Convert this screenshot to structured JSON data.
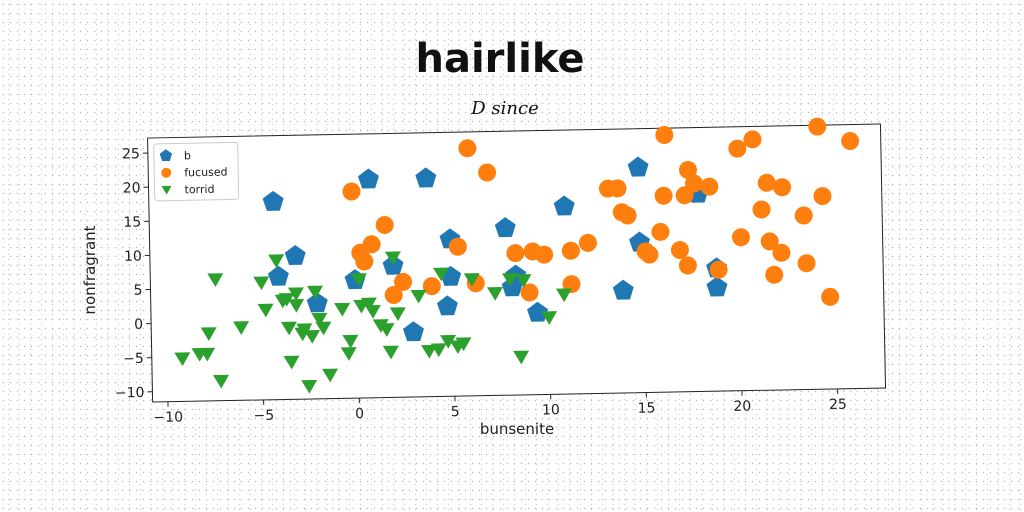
{
  "chart_data": {
    "type": "scatter",
    "title": "hairlike",
    "subtitle": "D since",
    "xlabel": "bunsenite",
    "ylabel": "nonfragrant",
    "xlim": [
      -10.8,
      27.5
    ],
    "ylim": [
      -11.5,
      27.2
    ],
    "x_ticks": [
      -10,
      -5,
      0,
      5,
      10,
      15,
      20,
      25
    ],
    "y_ticks": [
      -10,
      -5,
      0,
      5,
      10,
      15,
      20,
      25
    ],
    "x_tick_labels": [
      "−10",
      "−5",
      "0",
      "5",
      "10",
      "15",
      "20",
      "25"
    ],
    "y_tick_labels": [
      "−10",
      "−5",
      "0",
      "5",
      "10",
      "15",
      "20",
      "25"
    ],
    "grid": false,
    "legend_position": "top-left",
    "series": [
      {
        "name": "b",
        "marker": "pentagon",
        "color": "#1f77b4",
        "points": [
          [
            -4.3,
            17.5
          ],
          [
            0.7,
            20.5
          ],
          [
            3.7,
            20.5
          ],
          [
            -3.2,
            9.5
          ],
          [
            -4.1,
            6.5
          ],
          [
            -2.1,
            2.5
          ],
          [
            -0.1,
            5.8
          ],
          [
            1.9,
            7.8
          ],
          [
            2.9,
            -2.0
          ],
          [
            4.9,
            11.5
          ],
          [
            4.9,
            6.0
          ],
          [
            4.7,
            1.7
          ],
          [
            7.8,
            13.0
          ],
          [
            8.3,
            6.0
          ],
          [
            8.1,
            4.3
          ],
          [
            9.4,
            0.5
          ],
          [
            10.9,
            16.0
          ],
          [
            13.9,
            3.5
          ],
          [
            14.8,
            21.5
          ],
          [
            14.8,
            10.5
          ],
          [
            17.9,
            17.5
          ],
          [
            18.8,
            6.5
          ],
          [
            18.8,
            3.7
          ]
        ]
      },
      {
        "name": "fucused",
        "marker": "circle",
        "color": "#ff7f0e",
        "points": [
          [
            -0.2,
            18.8
          ],
          [
            0.2,
            9.8
          ],
          [
            0.4,
            8.5
          ],
          [
            0.8,
            11.0
          ],
          [
            1.5,
            13.8
          ],
          [
            1.9,
            3.5
          ],
          [
            2.4,
            5.4
          ],
          [
            3.9,
            4.7
          ],
          [
            5.3,
            10.4
          ],
          [
            5.9,
            24.8
          ],
          [
            6.2,
            5.0
          ],
          [
            6.9,
            21.2
          ],
          [
            8.3,
            9.3
          ],
          [
            9.0,
            3.5
          ],
          [
            9.2,
            9.5
          ],
          [
            9.8,
            9.0
          ],
          [
            11.2,
            9.5
          ],
          [
            11.2,
            4.6
          ],
          [
            12.1,
            10.6
          ],
          [
            13.2,
            18.5
          ],
          [
            13.7,
            18.5
          ],
          [
            13.9,
            15.0
          ],
          [
            14.2,
            14.5
          ],
          [
            15.1,
            9.2
          ],
          [
            15.3,
            8.7
          ],
          [
            15.9,
            12.0
          ],
          [
            16.1,
            17.3
          ],
          [
            16.2,
            26.2
          ],
          [
            16.9,
            9.3
          ],
          [
            17.2,
            17.3
          ],
          [
            17.3,
            7.0
          ],
          [
            17.4,
            21.0
          ],
          [
            17.7,
            19.0
          ],
          [
            18.5,
            18.5
          ],
          [
            18.9,
            6.3
          ],
          [
            20.0,
            24.0
          ],
          [
            20.1,
            11.0
          ],
          [
            20.8,
            25.3
          ],
          [
            21.2,
            15.0
          ],
          [
            21.5,
            18.9
          ],
          [
            21.6,
            10.3
          ],
          [
            21.8,
            5.4
          ],
          [
            22.2,
            8.6
          ],
          [
            22.3,
            18.2
          ],
          [
            23.4,
            14.0
          ],
          [
            23.5,
            7.0
          ],
          [
            24.2,
            27.0
          ],
          [
            24.4,
            16.8
          ],
          [
            24.7,
            2.0
          ],
          [
            25.9,
            24.8
          ]
        ]
      },
      {
        "name": "torrid",
        "marker": "triangle-down",
        "color": "#2ca02c",
        "points": [
          [
            -9.2,
            -5.2
          ],
          [
            -8.3,
            -4.6
          ],
          [
            -7.9,
            -4.6
          ],
          [
            -7.8,
            -1.6
          ],
          [
            -7.4,
            6.3
          ],
          [
            -7.2,
            -8.6
          ],
          [
            -6.1,
            -0.8
          ],
          [
            -5.0,
            5.7
          ],
          [
            -4.8,
            1.7
          ],
          [
            -4.2,
            8.9
          ],
          [
            -3.9,
            3.0
          ],
          [
            -3.7,
            3.2
          ],
          [
            -3.6,
            -1.0
          ],
          [
            -3.5,
            -6.0
          ],
          [
            -3.2,
            4.0
          ],
          [
            -3.2,
            2.3
          ],
          [
            -2.9,
            -1.9
          ],
          [
            -2.8,
            -1.3
          ],
          [
            -2.6,
            -9.6
          ],
          [
            -2.4,
            -2.3
          ],
          [
            -2.2,
            4.2
          ],
          [
            -2.0,
            0.2
          ],
          [
            -1.8,
            -1.1
          ],
          [
            -1.5,
            -8.0
          ],
          [
            -0.8,
            1.6
          ],
          [
            -0.5,
            -4.9
          ],
          [
            -0.4,
            -3.1
          ],
          [
            0.1,
            5.9
          ],
          [
            0.2,
            2.0
          ],
          [
            0.6,
            2.3
          ],
          [
            0.8,
            1.2
          ],
          [
            1.2,
            -0.9
          ],
          [
            1.5,
            -1.5
          ],
          [
            1.7,
            -4.8
          ],
          [
            1.9,
            9.0
          ],
          [
            2.1,
            0.8
          ],
          [
            3.2,
            3.3
          ],
          [
            3.7,
            -4.8
          ],
          [
            4.2,
            -4.6
          ],
          [
            4.4,
            6.5
          ],
          [
            4.7,
            -3.4
          ],
          [
            5.2,
            -4.2
          ],
          [
            5.5,
            -3.8
          ],
          [
            6.0,
            5.6
          ],
          [
            7.2,
            3.5
          ],
          [
            8.0,
            5.5
          ],
          [
            8.5,
            -5.9
          ],
          [
            8.7,
            5.3
          ],
          [
            10.0,
            -0.2
          ],
          [
            10.8,
            3.1
          ]
        ]
      }
    ]
  }
}
